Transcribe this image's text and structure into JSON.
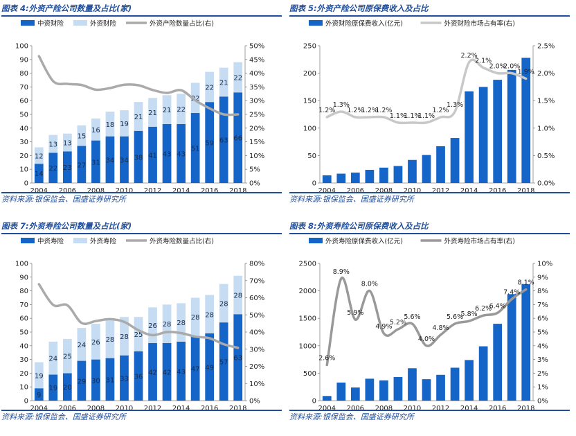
{
  "panels": [
    {
      "title": "图表 4:外资产险公司数量及占比(家)",
      "source": "资料来源:银保监会、国盛证券研究所",
      "chart_data": {
        "type": "bar",
        "stacked": true,
        "categories": [
          "2004",
          "2005",
          "2006",
          "2007",
          "2008",
          "2009",
          "2010",
          "2011",
          "2012",
          "2013",
          "2014",
          "2015",
          "2016",
          "2017",
          "2018"
        ],
        "x_tick_labels": [
          "2004",
          "2006",
          "2008",
          "2010",
          "2012",
          "2014",
          "2016",
          "2018"
        ],
        "series": [
          {
            "name": "中资财险",
            "axis": "left",
            "values": [
              14,
              22,
              23,
              27,
              31,
              34,
              34,
              38,
              41,
              43,
              43,
              51,
              59,
              63,
              66
            ],
            "color": "#1565c8"
          },
          {
            "name": "外资财险",
            "axis": "left",
            "values": [
              12,
              13,
              13,
              15,
              16,
              18,
              19,
              21,
              21,
              21,
              22,
              22,
              22,
              21,
              22
            ],
            "color": "#c5dcf3"
          },
          {
            "name": "外资产险数量占比(右)",
            "type": "line",
            "axis": "right",
            "values": [
              46.2,
              37.1,
              36.1,
              35.7,
              34.0,
              34.6,
              35.8,
              35.6,
              33.9,
              32.8,
              33.8,
              30.1,
              27.2,
              25.0,
              25.0
            ],
            "color": "#aaaaaa"
          }
        ],
        "y_left": {
          "min": 0,
          "max": 100,
          "step": 10
        },
        "y_right": {
          "min": 0,
          "max": 50,
          "step": 5,
          "unit": "%",
          "decimals": 0
        },
        "legend_position": "top"
      }
    },
    {
      "title": "图表 5:外资产险公司原保费收入及占比",
      "source": "资料来源:银保监会、国盛证券研究所",
      "chart_data": {
        "type": "bar",
        "stacked": false,
        "categories": [
          "2004",
          "2005",
          "2006",
          "2007",
          "2008",
          "2009",
          "2010",
          "2011",
          "2012",
          "2013",
          "2014",
          "2015",
          "2016",
          "2017",
          "2018"
        ],
        "x_tick_labels": [
          "2004",
          "2006",
          "2008",
          "2010",
          "2012",
          "2014",
          "2016",
          "2018"
        ],
        "series": [
          {
            "name": "外资财险原保费收入(亿元)",
            "axis": "left",
            "values": [
              14,
              17,
              19,
              24,
              28,
              31,
              42,
              51,
              67,
              82,
              167,
              175,
              188,
              206,
              228
            ],
            "color": "#1565c8"
          },
          {
            "name": "外资财险市场占有率(右)",
            "type": "line",
            "axis": "right",
            "values": [
              1.2,
              1.3,
              1.2,
              1.2,
              1.2,
              1.1,
              1.1,
              1.1,
              1.2,
              1.3,
              2.2,
              2.1,
              2.0,
              2.0,
              1.9
            ],
            "color": "#c8c8c8",
            "labels": [
              "1.2%",
              "1.3%",
              "1.2%",
              "1.2%",
              "1.2%",
              "1.1%",
              "1.1%",
              "1.1%",
              "1.2%",
              "1.3%",
              "2.2%",
              "2.1%",
              "2.0%",
              "2.0%",
              "1.9%"
            ]
          }
        ],
        "y_left": {
          "min": 0,
          "max": 250,
          "step": 50
        },
        "y_right": {
          "min": 0,
          "max": 2.5,
          "step": 0.5,
          "unit": "%",
          "decimals": 1
        },
        "legend_position": "top"
      }
    },
    {
      "title": "图表 7:外资寿险公司数量及占比(家)",
      "source": "资料来源:银保监会、国盛证券研究所",
      "chart_data": {
        "type": "bar",
        "stacked": true,
        "categories": [
          "2004",
          "2005",
          "2006",
          "2007",
          "2008",
          "2009",
          "2010",
          "2011",
          "2012",
          "2013",
          "2014",
          "2015",
          "2016",
          "2017",
          "2018"
        ],
        "x_tick_labels": [
          "2004",
          "2006",
          "2008",
          "2010",
          "2012",
          "2014",
          "2016",
          "2018"
        ],
        "series": [
          {
            "name": "中资寿险",
            "axis": "left",
            "values": [
              9,
              19,
              20,
              29,
              30,
              31,
              33,
              36,
              42,
              42,
              43,
              47,
              49,
              57,
              63
            ],
            "color": "#1565c8"
          },
          {
            "name": "外资寿险",
            "axis": "left",
            "values": [
              19,
              24,
              25,
              24,
              26,
              28,
              28,
              25,
              26,
              28,
              28,
              28,
              28,
              28,
              28
            ],
            "color": "#c5dcf3"
          },
          {
            "name": "外资寿险数量占比(右)",
            "type": "line",
            "axis": "right",
            "values": [
              67.9,
              55.8,
              55.6,
              45.3,
              46.4,
              47.5,
              45.9,
              41.0,
              38.2,
              40.0,
              39.4,
              37.3,
              36.4,
              32.9,
              30.8
            ],
            "color": "#aaaaaa"
          }
        ],
        "y_left": {
          "min": 0,
          "max": 100,
          "step": 10
        },
        "y_right": {
          "min": 0,
          "max": 80,
          "step": 10,
          "unit": "%",
          "decimals": 0
        },
        "legend_position": "top"
      }
    },
    {
      "title": "图表 8:外资寿险公司原保费收入及占比",
      "source": "资料来源:银保监会、国盛证券研究所",
      "chart_data": {
        "type": "bar",
        "stacked": false,
        "categories": [
          "2004",
          "2005",
          "2006",
          "2007",
          "2008",
          "2009",
          "2010",
          "2011",
          "2012",
          "2013",
          "2014",
          "2015",
          "2016",
          "2017",
          "2018"
        ],
        "x_tick_labels": [
          "2004",
          "2006",
          "2008",
          "2010",
          "2012",
          "2014",
          "2016",
          "2018"
        ],
        "series": [
          {
            "name": "外资寿险原保费收入(亿元)",
            "axis": "left",
            "values": [
              85,
              330,
              240,
              400,
              370,
              430,
              590,
              390,
              470,
              600,
              740,
              990,
              1400,
              1940,
              2120
            ],
            "color": "#1565c8"
          },
          {
            "name": "外资寿险市场占有率(右)",
            "type": "line",
            "axis": "right",
            "values": [
              2.6,
              8.9,
              5.9,
              8.0,
              4.9,
              5.2,
              5.6,
              4.0,
              4.8,
              5.6,
              5.8,
              6.2,
              6.4,
              7.4,
              8.1
            ],
            "color": "#999999",
            "labels": [
              "2.6%",
              "8.9%",
              "5.9%",
              "8.0%",
              "4.9%",
              "5.2%",
              "5.6%",
              "4.0%",
              "4.8%",
              "5.6%",
              "5.8%",
              "6.2%",
              "6.4%",
              "7.4%",
              "8.1%"
            ]
          }
        ],
        "y_left": {
          "min": 0,
          "max": 2500,
          "step": 500
        },
        "y_right": {
          "min": 0,
          "max": 10,
          "step": 1,
          "unit": "%",
          "decimals": 0
        },
        "legend_position": "top"
      }
    }
  ]
}
